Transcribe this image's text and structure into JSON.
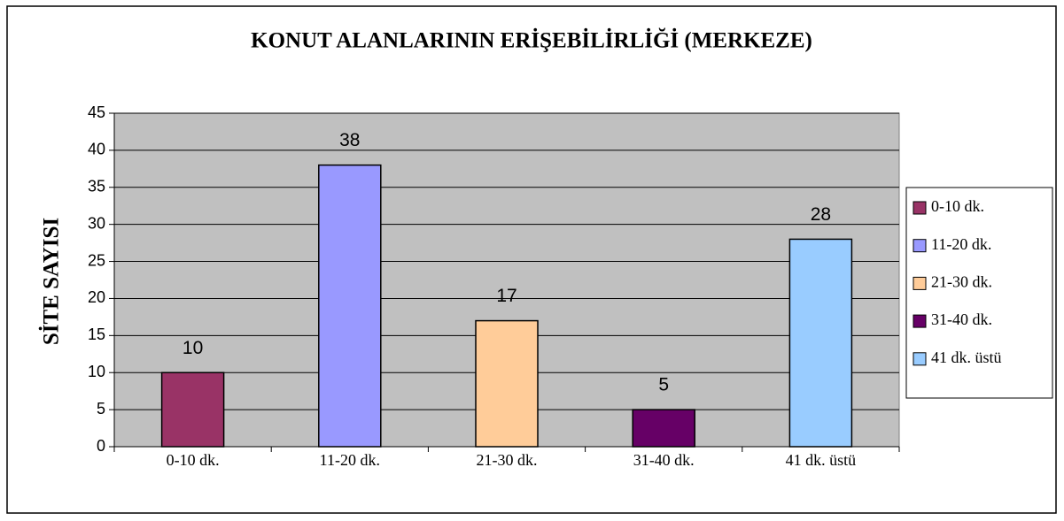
{
  "chart_data": {
    "type": "bar",
    "title": "KONUT ALANLARININ ERİŞEBİLİRLİĞİ (MERKEZE)",
    "y_label": "SİTE SAYISI",
    "categories": [
      "0-10 dk.",
      "11-20 dk.",
      "21-30 dk.",
      "31-40 dk.",
      "41 dk. üstü"
    ],
    "values": [
      10,
      38,
      17,
      5,
      28
    ],
    "colors": [
      "#993366",
      "#9999ff",
      "#ffcc99",
      "#660066",
      "#99ccff"
    ],
    "ylim": [
      0,
      45
    ],
    "yticks": [
      0,
      5,
      10,
      15,
      20,
      25,
      30,
      35,
      40,
      45
    ],
    "grid": true,
    "legend": "right"
  }
}
